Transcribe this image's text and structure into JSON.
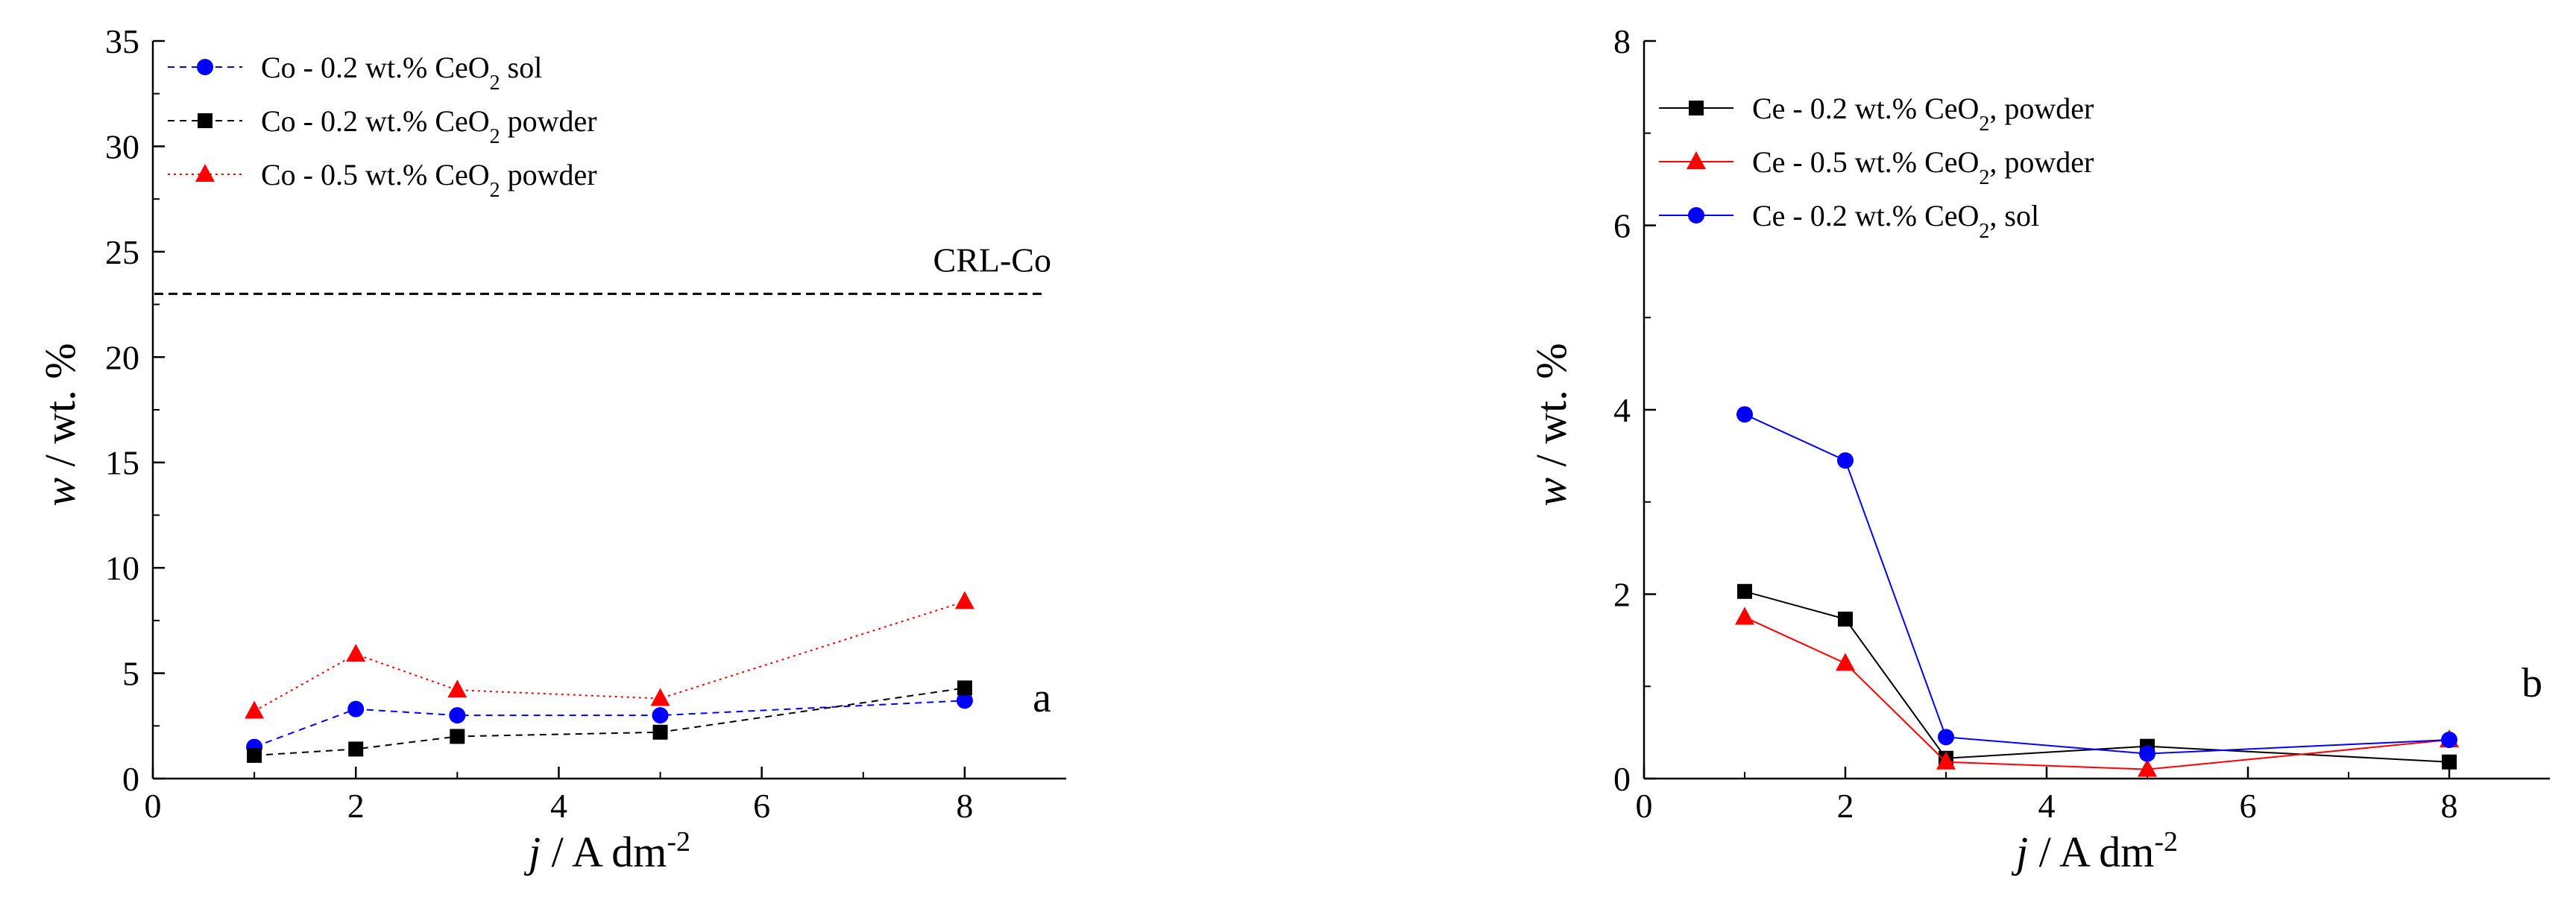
{
  "chart_data": [
    {
      "type": "line",
      "panel_label": "a",
      "xlabel": "j / A dm-2",
      "ylabel": "w / wt. %",
      "xlim": [
        0,
        9
      ],
      "ylim": [
        0,
        35
      ],
      "xticks": [
        0,
        2,
        4,
        6,
        8
      ],
      "yticks": [
        0,
        5,
        10,
        15,
        20,
        25,
        30,
        35
      ],
      "x": [
        1,
        2,
        3,
        5,
        8
      ],
      "legend_position": "top-left",
      "series": [
        {
          "name": "Co - 0.2 wt.% CeO2 sol",
          "color": "#0000ff",
          "marker": "circle",
          "line_style": "dash",
          "values": [
            1.5,
            3.3,
            3.0,
            3.0,
            3.7
          ]
        },
        {
          "name": "Co - 0.2 wt.% CeO2 powder",
          "color": "#000000",
          "marker": "square",
          "line_style": "dash",
          "values": [
            1.1,
            1.4,
            2.0,
            2.2,
            4.3
          ]
        },
        {
          "name": "Co - 0.5 wt.% CeO2 powder",
          "color": "#ff0000",
          "marker": "triangle",
          "line_style": "dot",
          "values": [
            3.2,
            5.9,
            4.2,
            3.8,
            8.4
          ]
        }
      ],
      "reference_line": {
        "label": "CRL-Co",
        "value": 23.0
      }
    },
    {
      "type": "line",
      "panel_label": "b",
      "xlabel": "j / A dm-2",
      "ylabel": "w / wt. %",
      "xlim": [
        0,
        9
      ],
      "ylim": [
        0,
        8
      ],
      "xticks": [
        0,
        2,
        4,
        6,
        8
      ],
      "yticks": [
        0,
        2,
        4,
        6,
        8
      ],
      "x": [
        1,
        2,
        3,
        5,
        8
      ],
      "legend_position": "top-left",
      "series": [
        {
          "name": "Ce - 0.2 wt.% CeO2, powder",
          "color": "#000000",
          "marker": "square",
          "line_style": "solid",
          "values": [
            2.03,
            1.73,
            0.22,
            0.35,
            0.18
          ]
        },
        {
          "name": "Ce - 0.5 wt.% CeO2, powder",
          "color": "#ff0000",
          "marker": "triangle",
          "line_style": "solid",
          "values": [
            1.75,
            1.25,
            0.18,
            0.1,
            0.42
          ]
        },
        {
          "name": "Ce - 0.2 wt.% CeO2, sol",
          "color": "#0000ff",
          "marker": "circle",
          "line_style": "solid",
          "values": [
            3.95,
            3.45,
            0.45,
            0.27,
            0.42
          ]
        }
      ]
    }
  ]
}
